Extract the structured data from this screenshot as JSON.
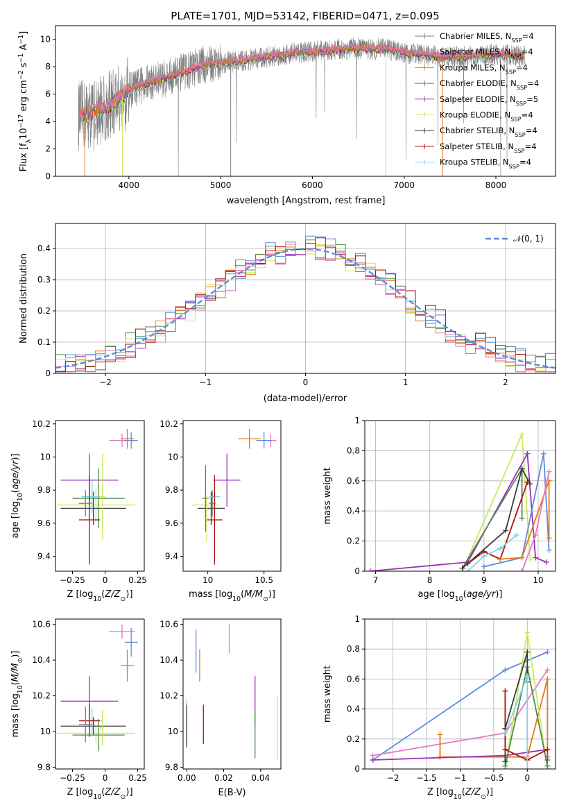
{
  "title": "PLATE=1701, MJD=53142, FIBERID=0471, z=0.095",
  "colors": {
    "Chabrier MILES": "#7f7f7f",
    "Salpeter MILES": "#e377c2",
    "Kroupa MILES": "#e6771e",
    "Chabrier ELODIE": "#4f8a4f",
    "Salpeter ELODIE": "#9b30b8",
    "Kroupa ELODIE": "#cde85a",
    "Chabrier STELIB": "#3a3a3a",
    "Salpeter STELIB": "#b01010",
    "Kroupa STELIB": "#7fd6e0",
    "Chabrier MILES blue": "#5b8bd8"
  },
  "chart_data": [
    {
      "id": "spectrum",
      "type": "line",
      "title": "PLATE=1701, MJD=53142, FIBERID=0471, z=0.095",
      "xlabel": "wavelength [Angstrom, rest frame]",
      "ylabel": "Flux [f_λ 10^-17 erg cm^-2 s^-1 A^-1]",
      "xlim": [
        3200,
        8650
      ],
      "ylim": [
        0,
        11
      ],
      "xticks": [
        4000,
        5000,
        6000,
        7000,
        8000
      ],
      "yticks": [
        0,
        2,
        4,
        6,
        8,
        10
      ],
      "legend_position": "top-right",
      "legend": [
        "Chabrier MILES, N_SSP=4",
        "Salpeter MILES, N_SSP=4",
        "Kroupa MILES, N_SSP=4",
        "Chabrier ELODIE, N_SSP=4",
        "Salpeter ELODIE, N_SSP=5",
        "Kroupa ELODIE, N_SSP=4",
        "Chabrier STELIB, N_SSP=4",
        "Salpeter STELIB, N_SSP=4",
        "Kroupa STELIB, N_SSP=4"
      ],
      "continuum_points": [
        [
          3450,
          4.4
        ],
        [
          3600,
          4.6
        ],
        [
          3800,
          5.2
        ],
        [
          4000,
          6.3
        ],
        [
          4200,
          6.8
        ],
        [
          4400,
          7.2
        ],
        [
          4600,
          7.6
        ],
        [
          4800,
          8.1
        ],
        [
          5000,
          8.3
        ],
        [
          5200,
          8.4
        ],
        [
          5400,
          8.6
        ],
        [
          5600,
          8.8
        ],
        [
          5800,
          9.0
        ],
        [
          6000,
          9.1
        ],
        [
          6200,
          9.2
        ],
        [
          6400,
          9.3
        ],
        [
          6600,
          9.3
        ],
        [
          6800,
          9.3
        ],
        [
          7000,
          9.0
        ],
        [
          7200,
          8.9
        ],
        [
          7400,
          8.7
        ],
        [
          7600,
          8.7
        ],
        [
          7800,
          8.8
        ],
        [
          8000,
          8.9
        ],
        [
          8300,
          8.8
        ]
      ]
    },
    {
      "id": "residuals",
      "type": "histogram",
      "xlabel": "(data-model)/error",
      "ylabel": "Normed distribution",
      "xlim": [
        -2.5,
        2.5
      ],
      "ylim": [
        0,
        0.48
      ],
      "xticks": [
        -2,
        -1,
        0,
        1,
        2
      ],
      "yticks": [
        0.0,
        0.1,
        0.2,
        0.3,
        0.4
      ],
      "grid": true,
      "legend": [
        "N(0,1)"
      ],
      "legend_position": "top-right"
    },
    {
      "id": "age-vs-Z",
      "type": "errorbar",
      "xlabel": "Z [log10(Z/Z⊙)]",
      "ylabel": "age  [log10(age/yr)]",
      "xlim": [
        -0.38,
        0.3
      ],
      "ylim": [
        9.31,
        10.22
      ],
      "xticks": [
        -0.25,
        0.0,
        0.25
      ],
      "yticks": [
        9.4,
        9.6,
        9.8,
        10.0,
        10.2
      ],
      "points": [
        {
          "series": "Salpeter MILES",
          "x": 0.13,
          "y": 10.1,
          "xerr": 0.1,
          "yerr": 0.04
        },
        {
          "series": "Kroupa MILES",
          "x": 0.17,
          "y": 10.11,
          "xerr": 0.05,
          "yerr": 0.06
        },
        {
          "series": "Chabrier MILES blue",
          "x": 0.2,
          "y": 10.1,
          "xerr": 0.05,
          "yerr": 0.05
        },
        {
          "series": "Salpeter ELODIE",
          "x": -0.12,
          "y": 9.86,
          "xerr": 0.22,
          "yerr": 0.16
        },
        {
          "series": "Kroupa ELODIE",
          "x": -0.07,
          "y": 9.71,
          "xerr": 0.3,
          "yerr": 0.1
        },
        {
          "series": "Chabrier STELIB",
          "x": -0.09,
          "y": 9.69,
          "xerr": 0.25,
          "yerr": 0.1
        },
        {
          "series": "Chabrier ELODIE",
          "x": -0.05,
          "y": 9.75,
          "xerr": 0.2,
          "yerr": 0.18
        },
        {
          "series": "Kroupa STELIB",
          "x": -0.1,
          "y": 9.76,
          "xerr": 0.08,
          "yerr": 0.1
        },
        {
          "series": "Salpeter STELIB",
          "x": -0.12,
          "y": 9.62,
          "xerr": 0.08,
          "yerr": 0.27
        },
        {
          "series": "Chabrier MILES",
          "x": -0.15,
          "y": 9.72,
          "xerr": 0.05,
          "yerr": 0.08
        },
        {
          "series": "Kroupa ELODIE",
          "x": -0.02,
          "y": 9.76,
          "xerr": 0.02,
          "yerr": 0.26
        }
      ]
    },
    {
      "id": "age-vs-mass",
      "type": "errorbar",
      "xlabel": "mass [log10(M/M⊙)]",
      "xlim": [
        9.78,
        10.65
      ],
      "ylim": [
        9.31,
        10.22
      ],
      "xticks": [
        10.0,
        10.5
      ],
      "yticks": [
        9.4,
        9.6,
        9.8,
        10.0,
        10.2
      ],
      "points": [
        {
          "series": "Salpeter MILES",
          "x": 10.56,
          "y": 10.1,
          "xerr": 0.05,
          "yerr": 0.04
        },
        {
          "series": "Kroupa MILES",
          "x": 10.37,
          "y": 10.11,
          "xerr": 0.1,
          "yerr": 0.06
        },
        {
          "series": "Chabrier MILES blue",
          "x": 10.5,
          "y": 10.1,
          "xerr": 0.07,
          "yerr": 0.05
        },
        {
          "series": "Salpeter ELODIE",
          "x": 10.17,
          "y": 9.86,
          "xerr": 0.12,
          "yerr": 0.16
        },
        {
          "series": "Kroupa ELODIE",
          "x": 9.98,
          "y": 9.71,
          "xerr": 0.12,
          "yerr": 0.1
        },
        {
          "series": "Chabrier STELIB",
          "x": 10.03,
          "y": 9.69,
          "xerr": 0.12,
          "yerr": 0.1
        },
        {
          "series": "Chabrier ELODIE",
          "x": 9.98,
          "y": 9.75,
          "xerr": 0.03,
          "yerr": 0.2
        },
        {
          "series": "Kroupa STELIB",
          "x": 10.06,
          "y": 9.76,
          "xerr": 0.05,
          "yerr": 0.1
        },
        {
          "series": "Salpeter STELIB",
          "x": 10.06,
          "y": 9.62,
          "xerr": 0.07,
          "yerr": 0.27
        },
        {
          "series": "Chabrier MILES",
          "x": 10.04,
          "y": 9.72,
          "xerr": 0.03,
          "yerr": 0.08
        },
        {
          "series": "Kroupa ELODIE",
          "x": 9.99,
          "y": 9.63,
          "xerr": 0.02,
          "yerr": 0.14
        }
      ]
    },
    {
      "id": "weight-vs-age",
      "type": "line",
      "xlabel": "age  [log10(age/yr)]",
      "ylabel": "mass weight",
      "xlim": [
        6.8,
        10.32
      ],
      "ylim": [
        0.0,
        1.0
      ],
      "xticks": [
        7,
        8,
        9,
        10
      ],
      "yticks": [
        0.0,
        0.2,
        0.4,
        0.6,
        0.8,
        1.0
      ],
      "grid": true,
      "series": [
        {
          "color": "Kroupa ELODIE",
          "x": [
            8.6,
            9.7,
            9.85
          ],
          "y": [
            0.0,
            0.91,
            0.08
          ]
        },
        {
          "color": "Salpeter ELODIE",
          "x": [
            6.9,
            8.7,
            9.8,
            9.95,
            10.15
          ],
          "y": [
            0.0,
            0.06,
            0.78,
            0.09,
            0.06
          ]
        },
        {
          "color": "Chabrier ELODIE",
          "x": [
            8.6,
            9.7,
            9.7
          ],
          "y": [
            0.02,
            0.68,
            0.35
          ]
        },
        {
          "color": "Chabrier STELIB",
          "x": [
            8.6,
            9.4,
            9.7,
            9.85
          ],
          "y": [
            0.02,
            0.27,
            0.68,
            0.58
          ]
        },
        {
          "color": "Salpeter STELIB",
          "x": [
            8.7,
            9.0,
            9.3,
            9.8
          ],
          "y": [
            0.05,
            0.13,
            0.08,
            0.59
          ]
        },
        {
          "color": "Chabrier MILES blue",
          "x": [
            9.0,
            9.7,
            10.1,
            10.2
          ],
          "y": [
            0.03,
            0.09,
            0.78,
            0.14
          ]
        },
        {
          "color": "Kroupa MILES",
          "x": [
            9.3,
            9.7,
            10.2,
            10.2
          ],
          "y": [
            0.08,
            0.09,
            0.6,
            0.22
          ]
        },
        {
          "color": "Salpeter MILES",
          "x": [
            9.7,
            9.95,
            10.2
          ],
          "y": [
            0.0,
            0.24,
            0.66
          ]
        },
        {
          "color": "Kroupa STELIB",
          "x": [
            8.7,
            9.0,
            9.3,
            9.6
          ],
          "y": [
            0.0,
            0.1,
            0.15,
            0.24
          ]
        }
      ]
    },
    {
      "id": "mass-vs-Z",
      "type": "errorbar",
      "xlabel": "Z [log10(Z/Z⊙)]",
      "ylabel": "mass [log10(M/M⊙)]",
      "xlim": [
        -0.38,
        0.3
      ],
      "ylim": [
        9.79,
        10.63
      ],
      "xticks": [
        -0.25,
        0.0,
        0.25
      ],
      "yticks": [
        9.8,
        10.0,
        10.2,
        10.4,
        10.6
      ],
      "points": [
        {
          "series": "Salpeter MILES",
          "x": 0.13,
          "y": 10.56,
          "xerr": 0.1,
          "yerr": 0.04
        },
        {
          "series": "Kroupa MILES",
          "x": 0.17,
          "y": 10.37,
          "xerr": 0.05,
          "yerr": 0.09
        },
        {
          "series": "Chabrier MILES blue",
          "x": 0.2,
          "y": 10.5,
          "xerr": 0.05,
          "yerr": 0.08
        },
        {
          "series": "Salpeter ELODIE",
          "x": -0.12,
          "y": 10.17,
          "xerr": 0.22,
          "yerr": 0.14
        },
        {
          "series": "Kroupa ELODIE",
          "x": -0.07,
          "y": 9.99,
          "xerr": 0.3,
          "yerr": 0.05
        },
        {
          "series": "Chabrier STELIB",
          "x": -0.09,
          "y": 10.03,
          "xerr": 0.25,
          "yerr": 0.05
        },
        {
          "series": "Chabrier ELODIE",
          "x": -0.05,
          "y": 9.98,
          "xerr": 0.2,
          "yerr": 0.09
        },
        {
          "series": "Kroupa STELIB",
          "x": -0.1,
          "y": 10.06,
          "xerr": 0.08,
          "yerr": 0.07
        },
        {
          "series": "Salpeter STELIB",
          "x": -0.12,
          "y": 10.06,
          "xerr": 0.08,
          "yerr": 0.09
        },
        {
          "series": "Chabrier MILES",
          "x": -0.15,
          "y": 10.04,
          "xerr": 0.05,
          "yerr": 0.1
        },
        {
          "series": "Kroupa ELODIE",
          "x": -0.02,
          "y": 10.02,
          "xerr": 0.02,
          "yerr": 0.1
        }
      ]
    },
    {
      "id": "mass-vs-ebv",
      "type": "errorbar",
      "xlabel": "E(B-V)",
      "xlim": [
        -0.002,
        0.051
      ],
      "ylim": [
        9.79,
        10.63
      ],
      "xticks": [
        0.0,
        0.02,
        0.04
      ],
      "xticklabels": [
        "0.00",
        "0.02",
        "0.04"
      ],
      "yticks": [
        9.8,
        10.0,
        10.2,
        10.4,
        10.6
      ],
      "points": [
        {
          "series": "Chabrier MILES blue",
          "x": 0.005,
          "y": 10.45,
          "yerr": 0.12
        },
        {
          "series": "Kroupa MILES",
          "x": 0.007,
          "y": 10.37,
          "yerr": 0.09
        },
        {
          "series": "Salpeter MILES",
          "x": 0.023,
          "y": 10.52,
          "yerr": 0.08
        },
        {
          "series": "Salpeter STELIB",
          "x": 0.009,
          "y": 10.04,
          "yerr": 0.11
        },
        {
          "series": "Kroupa STELIB",
          "x": 0.0,
          "y": 10.06,
          "yerr": 0.12
        },
        {
          "series": "Chabrier STELIB",
          "x": 0.0,
          "y": 10.03,
          "yerr": 0.12
        },
        {
          "series": "Salpeter ELODIE",
          "x": 0.037,
          "y": 10.17,
          "yerr": 0.14
        },
        {
          "series": "Chabrier ELODIE",
          "x": 0.037,
          "y": 9.98,
          "yerr": 0.13
        },
        {
          "series": "Kroupa ELODIE",
          "x": 0.049,
          "y": 10.02,
          "yerr": 0.18
        }
      ]
    },
    {
      "id": "weight-vs-Z",
      "type": "line",
      "xlabel": "Z [log10(Z/Z⊙)]",
      "ylabel": "mass weight",
      "xlim": [
        -2.42,
        0.42
      ],
      "ylim": [
        0.0,
        1.0
      ],
      "xticks": [
        -2.0,
        -1.5,
        -1.0,
        -0.5,
        0.0
      ],
      "yticks": [
        0.0,
        0.2,
        0.4,
        0.6,
        0.8,
        1.0
      ],
      "grid": true,
      "series": [
        {
          "color": "Chabrier MILES blue",
          "x": [
            -2.3,
            -0.33,
            0.3
          ],
          "y": [
            0.06,
            0.66,
            0.78
          ]
        },
        {
          "color": "Salpeter MILES",
          "x": [
            -2.3,
            -0.33,
            0.3
          ],
          "y": [
            0.09,
            0.24,
            0.66
          ]
        },
        {
          "color": "Kroupa MILES",
          "x": [
            -1.3,
            -1.3,
            0.0,
            0.3,
            0.3
          ],
          "y": [
            0.23,
            0.08,
            0.08,
            0.6,
            0.08
          ]
        },
        {
          "color": "Salpeter ELODIE",
          "x": [
            -2.3,
            -0.33,
            0.3,
            0.3
          ],
          "y": [
            0.06,
            0.09,
            0.13,
            0.06
          ]
        },
        {
          "color": "Kroupa ELODIE",
          "x": [
            -0.33,
            0.0,
            0.3
          ],
          "y": [
            0.0,
            0.91,
            0.0
          ]
        },
        {
          "color": "Chabrier ELODIE",
          "x": [
            -0.33,
            0.0,
            0.3
          ],
          "y": [
            0.02,
            0.68,
            0.02
          ]
        },
        {
          "color": "Chabrier STELIB",
          "x": [
            -0.33,
            -0.33,
            0.0,
            0.0
          ],
          "y": [
            0.05,
            0.27,
            0.78,
            0.58
          ]
        },
        {
          "color": "Salpeter STELIB",
          "x": [
            -0.33,
            -0.33,
            0.0,
            0.3
          ],
          "y": [
            0.52,
            0.13,
            0.06,
            0.13
          ]
        },
        {
          "color": "Kroupa STELIB",
          "x": [
            -0.33,
            0.0,
            0.0
          ],
          "y": [
            0.24,
            0.62,
            0.0
          ]
        }
      ]
    }
  ]
}
